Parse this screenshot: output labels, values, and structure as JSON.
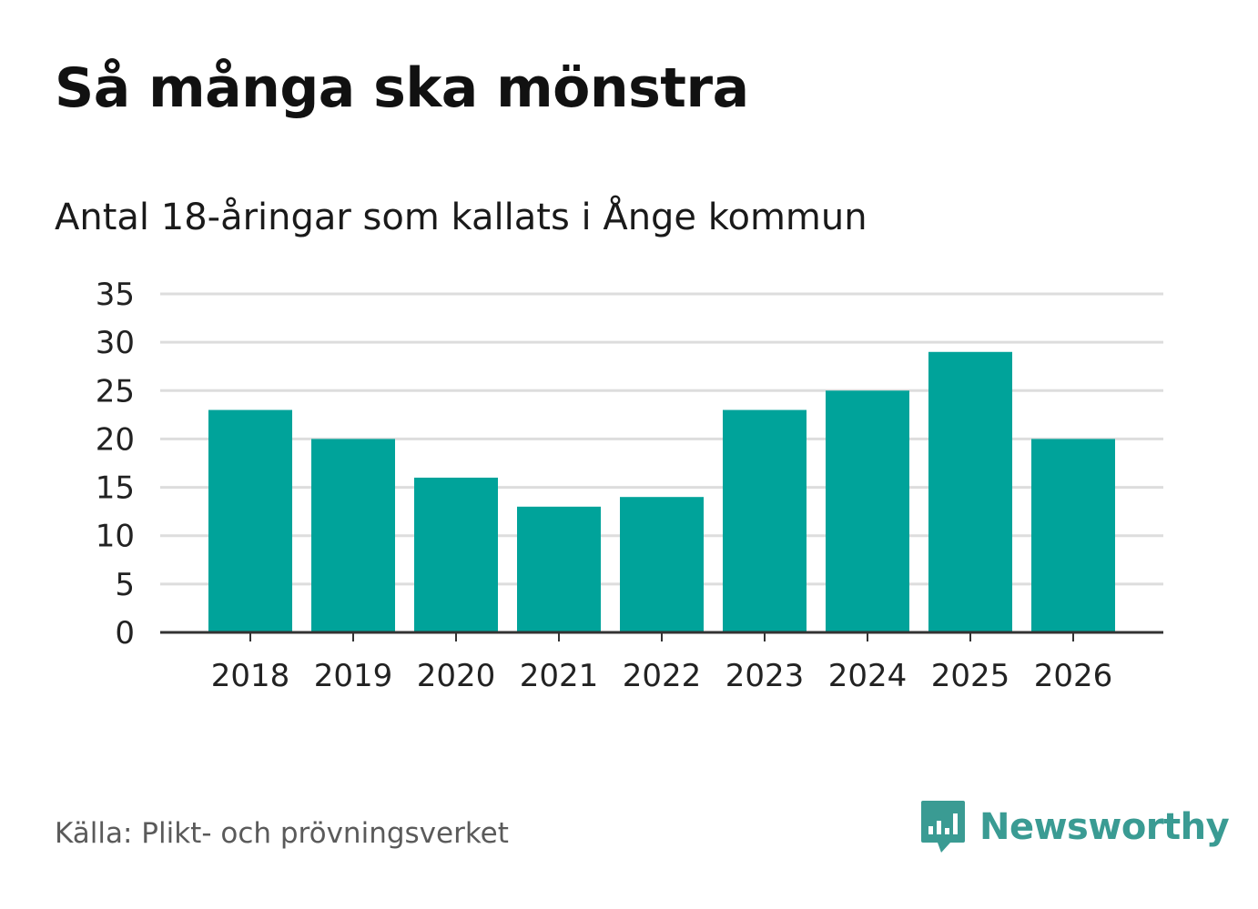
{
  "title": "Så många ska mönstra",
  "subtitle": "Antal 18-åringar som kallats i Ånge kommun",
  "source": "Källa: Plikt- och prövningsverket",
  "brand": {
    "name": "Newsworthy",
    "icon": "newsworthy-logo-icon",
    "color": "#3a9b93"
  },
  "colors": {
    "bar": "#00a39a",
    "grid": "#dddddd",
    "axis": "#333333"
  },
  "chart_data": {
    "type": "bar",
    "categories": [
      "2018",
      "2019",
      "2020",
      "2021",
      "2022",
      "2023",
      "2024",
      "2025",
      "2026"
    ],
    "values": [
      23,
      20,
      16,
      13,
      14,
      23,
      25,
      29,
      20
    ],
    "yticks": [
      "0",
      "5",
      "10",
      "15",
      "20",
      "25",
      "30",
      "35"
    ],
    "ylim": [
      0,
      35
    ],
    "grid": true,
    "title": "Så många ska mönstra",
    "subtitle": "Antal 18-åringar som kallats i Ånge kommun",
    "xlabel": "",
    "ylabel": ""
  }
}
